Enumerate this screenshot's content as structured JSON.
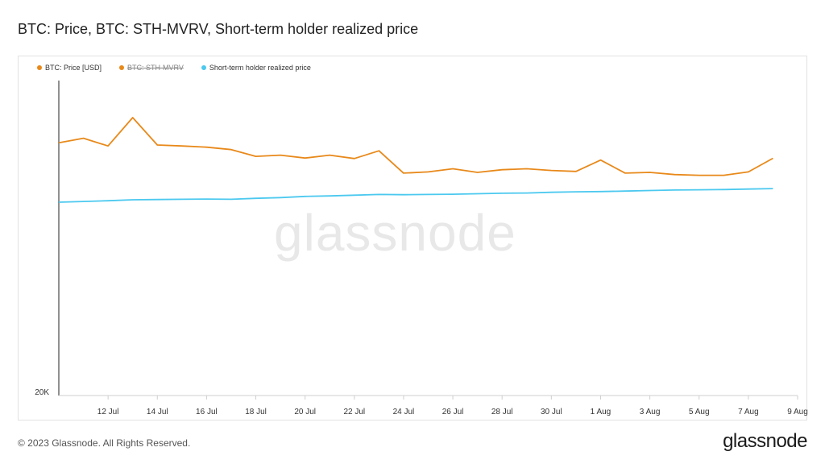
{
  "title": "BTC: Price, BTC: STH-MVRV, Short-term holder realized price",
  "watermark": "glassnode",
  "footer": "© 2023 Glassnode. All Rights Reserved.",
  "logo": "glassnode",
  "legend": [
    {
      "label": "BTC: Price [USD]",
      "color": "#e8891a",
      "hidden": false
    },
    {
      "label": "BTC: STH-MVRV",
      "color": "#e8891a",
      "hidden": true
    },
    {
      "label": "Short-term holder realized price",
      "color": "#4cc9ef",
      "hidden": false
    }
  ],
  "chart_data": {
    "type": "line",
    "x_tick_labels": [
      "12 Jul",
      "14 Jul",
      "16 Jul",
      "18 Jul",
      "20 Jul",
      "22 Jul",
      "24 Jul",
      "26 Jul",
      "28 Jul",
      "30 Jul",
      "1 Aug",
      "3 Aug",
      "5 Aug",
      "7 Aug",
      "9 Aug"
    ],
    "y_tick_labels": [
      "20K"
    ],
    "x": [
      "2023-07-10",
      "2023-07-11",
      "2023-07-12",
      "2023-07-13",
      "2023-07-14",
      "2023-07-15",
      "2023-07-16",
      "2023-07-17",
      "2023-07-18",
      "2023-07-19",
      "2023-07-20",
      "2023-07-21",
      "2023-07-22",
      "2023-07-23",
      "2023-07-24",
      "2023-07-25",
      "2023-07-26",
      "2023-07-27",
      "2023-07-28",
      "2023-07-29",
      "2023-07-30",
      "2023-07-31",
      "2023-08-01",
      "2023-08-02",
      "2023-08-03",
      "2023-08-04",
      "2023-08-05",
      "2023-08-06",
      "2023-08-07",
      "2023-08-08"
    ],
    "xlim": [
      "2023-07-10",
      "2023-08-09"
    ],
    "series": [
      {
        "name": "BTC: Price [USD]",
        "color": "#e8891a",
        "values": [
          30430,
          30620,
          30300,
          31470,
          30340,
          30300,
          30250,
          30150,
          29870,
          29920,
          29800,
          29920,
          29780,
          30100,
          29180,
          29230,
          29360,
          29210,
          29320,
          29360,
          29290,
          29250,
          29720,
          29180,
          29210,
          29120,
          29090,
          29090,
          29230,
          29790
        ]
      },
      {
        "name": "Short-term holder realized price",
        "color": "#4cc9ef",
        "values": [
          27980,
          28010,
          28040,
          28080,
          28090,
          28100,
          28110,
          28100,
          28140,
          28170,
          28220,
          28240,
          28270,
          28300,
          28290,
          28300,
          28310,
          28330,
          28350,
          28360,
          28390,
          28410,
          28420,
          28440,
          28460,
          28480,
          28490,
          28500,
          28520,
          28540
        ]
      }
    ],
    "ylim": [
      20000,
      33000
    ]
  }
}
